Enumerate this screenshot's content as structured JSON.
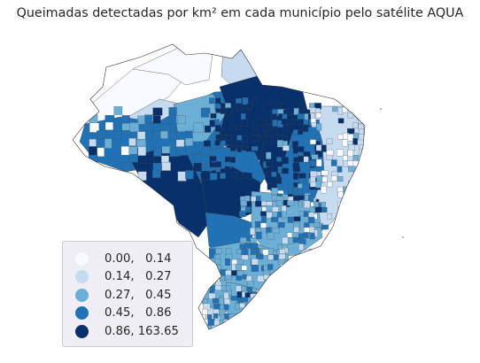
{
  "title": "Queimadas detectadas por km² em cada município pelo satélite AQUA",
  "legend": {
    "items": [
      {
        "label": "0.00,   0.14",
        "color": "#f7fbff"
      },
      {
        "label": "0.14,   0.27",
        "color": "#c6dbef"
      },
      {
        "label": "0.27,   0.45",
        "color": "#6baed6"
      },
      {
        "label": "0.45,   0.86",
        "color": "#2171b5"
      },
      {
        "label": "0.86, 163.65",
        "color": "#08306b"
      }
    ]
  },
  "map": {
    "classification": "quantiles",
    "class_count": 5,
    "colormap": "Blues",
    "border_color": "#4a4a4a",
    "regions": [
      {
        "name": "far-west-north",
        "class": 0
      },
      {
        "name": "roraima-north",
        "class": 0
      },
      {
        "name": "amapa",
        "class": 1
      },
      {
        "name": "central-amazon-west",
        "class": 1
      },
      {
        "name": "amazon-mosaic",
        "class": 3
      },
      {
        "name": "tapajos-basin",
        "class": 2
      },
      {
        "name": "para-east-core",
        "class": 4
      },
      {
        "name": "maranhao-tocantins",
        "class": 4
      },
      {
        "name": "rondonia-acre-arc",
        "class": 4
      },
      {
        "name": "mato-grosso-north",
        "class": 3
      },
      {
        "name": "mato-grosso-central",
        "class": 4
      },
      {
        "name": "mato-grosso-south",
        "class": 3
      },
      {
        "name": "piaui-bahia-west",
        "class": 3
      },
      {
        "name": "northeast-coast",
        "class": 1
      },
      {
        "name": "goias-minas",
        "class": 2
      },
      {
        "name": "sao-paulo-parana",
        "class": 2
      },
      {
        "name": "south-region",
        "class": 2
      },
      {
        "name": "rio-grande-south",
        "class": 1
      }
    ]
  }
}
